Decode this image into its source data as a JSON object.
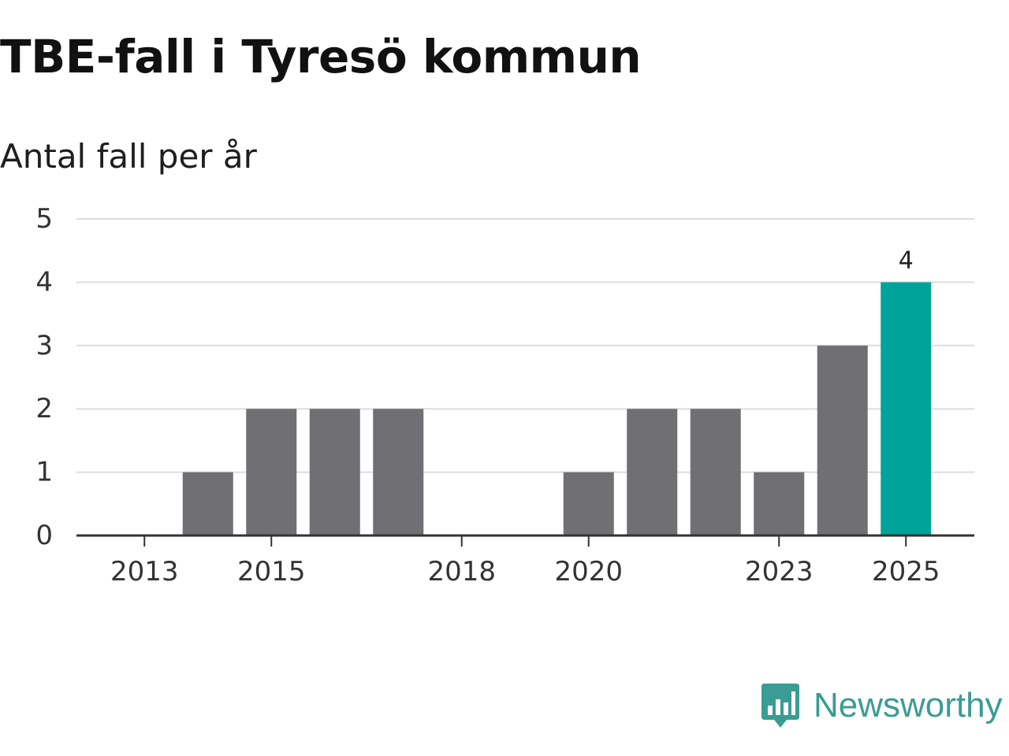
{
  "chart_data": {
    "type": "bar",
    "title": "TBE-fall i Tyresö kommun",
    "subtitle": "Antal fall per år",
    "categories": [
      "2013",
      "2014",
      "2015",
      "2016",
      "2017",
      "2018",
      "2019",
      "2020",
      "2021",
      "2022",
      "2023",
      "2024",
      "2025"
    ],
    "values": [
      0,
      1,
      2,
      2,
      2,
      0,
      0,
      1,
      2,
      2,
      1,
      3,
      4
    ],
    "x_tick_labels": [
      "2013",
      "2015",
      "2018",
      "2020",
      "2023",
      "2025"
    ],
    "y_ticks": [
      0,
      1,
      2,
      3,
      4,
      5
    ],
    "ylim": [
      0,
      5
    ],
    "xlabel": "",
    "ylabel": "",
    "grid": true,
    "highlight": {
      "category": "2025",
      "label": "4"
    },
    "colors": {
      "bar": "#706f74",
      "highlight": "#00a39a",
      "grid": "#dddddd",
      "axis": "#333333"
    }
  },
  "brand": {
    "name": "Newsworthy",
    "icon": "newsworthy-logo-icon",
    "color": "#3a9c93"
  }
}
